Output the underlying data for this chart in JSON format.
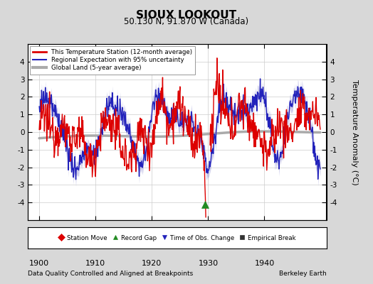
{
  "title": "SIOUX LOOKOUT",
  "subtitle": "50.130 N, 91.870 W (Canada)",
  "xlabel_note": "Data Quality Controlled and Aligned at Breakpoints",
  "credit": "Berkeley Earth",
  "xlim": [
    1898,
    1951
  ],
  "ylim": [
    -5,
    5
  ],
  "yticks": [
    -4,
    -3,
    -2,
    -1,
    0,
    1,
    2,
    3,
    4
  ],
  "xticks": [
    1900,
    1910,
    1920,
    1930,
    1940
  ],
  "ylabel": "Temperature Anomaly (°C)",
  "fig_bg_color": "#d8d8d8",
  "plot_bg_color": "#ffffff",
  "station_color": "#dd0000",
  "regional_color": "#2222bb",
  "regional_fill_color": "#aaaadd",
  "global_color": "#aaaaaa",
  "legend_items": [
    {
      "label": "This Temperature Station (12-month average)",
      "color": "#dd0000",
      "lw": 2.0
    },
    {
      "label": "Regional Expectation with 95% uncertainty",
      "color": "#2222bb",
      "lw": 1.5
    },
    {
      "label": "Global Land (5-year average)",
      "color": "#aaaaaa",
      "lw": 3
    }
  ],
  "marker_items": [
    {
      "label": "Station Move",
      "marker": "D",
      "color": "#dd0000"
    },
    {
      "label": "Record Gap",
      "marker": "^",
      "color": "#228B22"
    },
    {
      "label": "Time of Obs. Change",
      "marker": "v",
      "color": "#2222bb"
    },
    {
      "label": "Empirical Break",
      "marker": "s",
      "color": "#333333"
    }
  ],
  "green_marker_x": 1929.5,
  "green_marker_y": -4.1
}
